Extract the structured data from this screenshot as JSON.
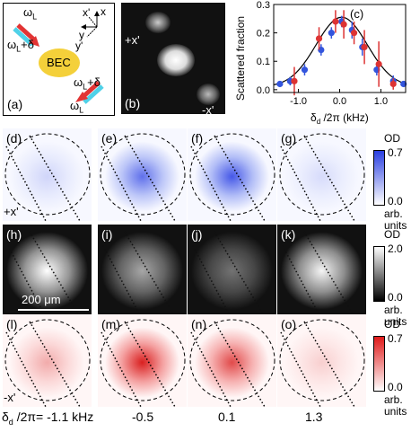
{
  "panel_a": {
    "label": "(a)",
    "bec_label": "BEC",
    "beam_top_left": "ω",
    "beam_top_left_sub": "L",
    "beam_top_left_delta": "ω",
    "beam_top_left_delta_sub": "L",
    "beam_top_left_delta_suffix": "+δ",
    "beam_bottom_right_delta": "ω",
    "beam_bottom_right_delta_sub": "L",
    "beam_bottom_right_delta_suffix": "+δ",
    "beam_bottom_right": "ω",
    "beam_bottom_right_sub": "L",
    "axis_x_prime": "x'",
    "axis_x": "x",
    "axis_y": "y",
    "axis_y_prime": "y'"
  },
  "panel_b": {
    "label": "(b)",
    "plus_label": "+x'",
    "minus_label": "-x'"
  },
  "chart_data": {
    "type": "scatter",
    "label": "(c)",
    "xlabel_main": "δ",
    "xlabel_sub": "d",
    "xlabel_rest": " /2π (kHz)",
    "ylabel": "Scattered fraction",
    "xlim": [
      -1.6,
      1.6
    ],
    "ylim": [
      -0.01,
      0.3
    ],
    "xticks": [
      -1.0,
      0.0,
      1.0
    ],
    "xtick_labels": [
      "-1.0",
      "0.0",
      "1.0"
    ],
    "yticks": [
      0.0,
      0.1,
      0.2,
      0.3
    ],
    "ytick_labels": [
      "0.0",
      "0.1",
      "0.2",
      "0.3"
    ],
    "series": [
      {
        "color": "#3355dd",
        "points": [
          {
            "x": -1.45,
            "y": 0.02,
            "err": 0.01
          },
          {
            "x": -1.2,
            "y": 0.03,
            "err": 0.015
          },
          {
            "x": -0.85,
            "y": 0.07,
            "err": 0.02
          },
          {
            "x": -0.45,
            "y": 0.14,
            "err": 0.02
          },
          {
            "x": -0.2,
            "y": 0.2,
            "err": 0.02
          },
          {
            "x": 0.05,
            "y": 0.24,
            "err": 0.02
          },
          {
            "x": 0.3,
            "y": 0.21,
            "err": 0.03
          },
          {
            "x": 0.55,
            "y": 0.15,
            "err": 0.03
          },
          {
            "x": 0.9,
            "y": 0.07,
            "err": 0.02
          },
          {
            "x": 1.3,
            "y": 0.03,
            "err": 0.02
          },
          {
            "x": 1.55,
            "y": 0.02,
            "err": 0.01
          }
        ]
      },
      {
        "color": "#dd3333",
        "points": [
          {
            "x": -1.1,
            "y": 0.03,
            "err": 0.05
          },
          {
            "x": -0.5,
            "y": 0.18,
            "err": 0.04
          },
          {
            "x": -0.1,
            "y": 0.24,
            "err": 0.04
          },
          {
            "x": 0.1,
            "y": 0.23,
            "err": 0.05
          },
          {
            "x": 0.35,
            "y": 0.2,
            "err": 0.04
          },
          {
            "x": 0.6,
            "y": 0.15,
            "err": 0.06
          },
          {
            "x": 0.95,
            "y": 0.09,
            "err": 0.08
          },
          {
            "x": 1.3,
            "y": 0.02,
            "err": 0.02
          }
        ]
      }
    ],
    "fit": {
      "amplitude": 0.245,
      "center": 0.05,
      "sigma": 0.62,
      "offset": 0.01
    }
  },
  "rows": [
    {
      "panels": [
        {
          "label": "(d)",
          "amount": 0.22
        },
        {
          "label": "(e)",
          "amount": 0.85
        },
        {
          "label": "(f)",
          "amount": 1.0
        },
        {
          "label": "(g)",
          "amount": 0.18
        }
      ],
      "side_label": "+x'",
      "colorbar": {
        "title": "OD",
        "max": "0.7",
        "min": "0.0",
        "unit1": "arb.",
        "unit2": "units",
        "color": "#2a3fe0"
      }
    },
    {
      "panels": [
        {
          "label": "(h)",
          "amount": 1.0
        },
        {
          "label": "(i)",
          "amount": 0.55
        },
        {
          "label": "(j)",
          "amount": 0.28
        },
        {
          "label": "(k)",
          "amount": 0.95
        }
      ],
      "side_label": "",
      "colorbar": {
        "title": "OD",
        "max": "2.0",
        "min": "0.0",
        "unit1": "arb.",
        "unit2": "units",
        "color": "#ffffff"
      }
    },
    {
      "panels": [
        {
          "label": "(l)",
          "amount": 0.35
        },
        {
          "label": "(m)",
          "amount": 1.0
        },
        {
          "label": "(n)",
          "amount": 0.8
        },
        {
          "label": "(o)",
          "amount": 0.18
        }
      ],
      "side_label": "-x'",
      "colorbar": {
        "title": "OD",
        "max": "0.7",
        "min": "0.0",
        "unit1": "arb.",
        "unit2": "units",
        "color": "#e01a1a"
      }
    }
  ],
  "scale_bar": "200 μm",
  "bottom": {
    "prefix_main": "δ",
    "prefix_sub": "d",
    "prefix_rest": " /2π= -1.1 kHz",
    "v2": "-0.5",
    "v3": "0.1",
    "v4": "1.3"
  }
}
